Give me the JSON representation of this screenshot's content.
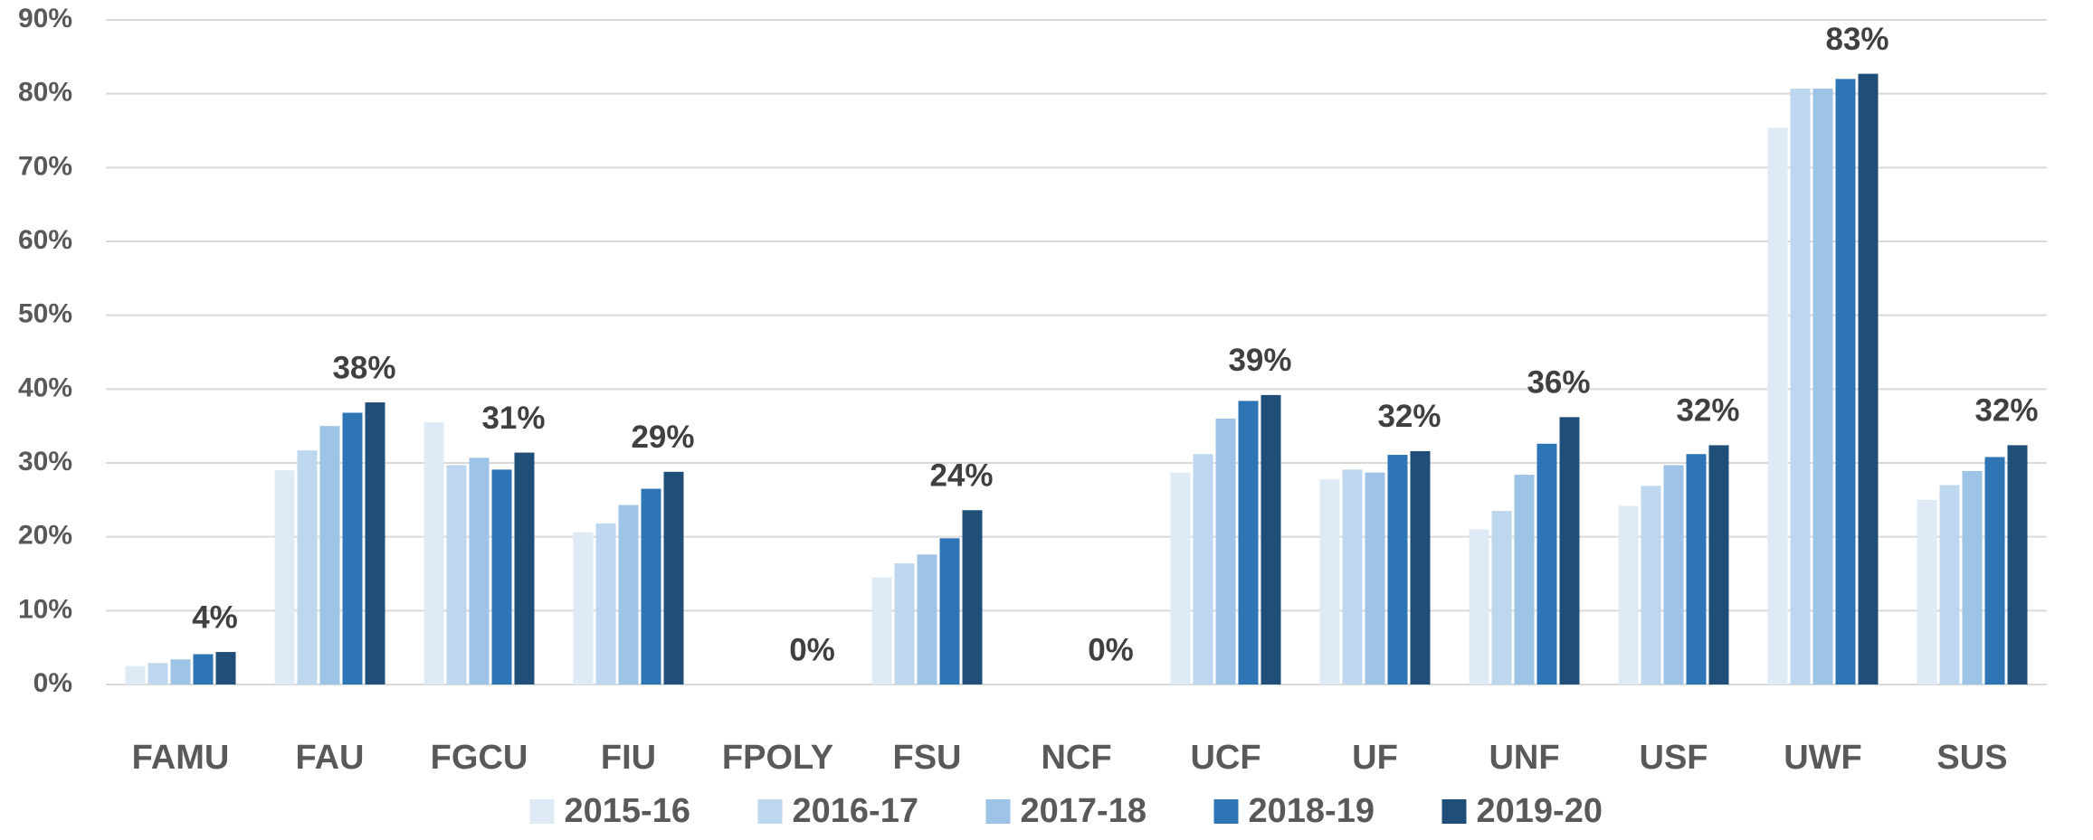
{
  "chart_data": {
    "type": "bar",
    "categories": [
      "FAMU",
      "FAU",
      "FGCU",
      "FIU",
      "FPOLY",
      "FSU",
      "NCF",
      "UCF",
      "UF",
      "UNF",
      "USF",
      "UWF",
      "SUS"
    ],
    "series": [
      {
        "name": "2015-16",
        "color": "#deebf7",
        "values": [
          2.5,
          29,
          35.5,
          20.6,
          0,
          14.5,
          0,
          28.7,
          27.8,
          21,
          24.2,
          75.4,
          25
        ]
      },
      {
        "name": "2016-17",
        "color": "#bdd7ee",
        "values": [
          2.9,
          31.7,
          29.7,
          21.8,
          0,
          16.4,
          0,
          31.2,
          29.1,
          23.5,
          26.9,
          80.7,
          27
        ]
      },
      {
        "name": "2017-18",
        "color": "#9dc3e6",
        "values": [
          3.4,
          35,
          30.7,
          24.3,
          0,
          17.6,
          0,
          36,
          28.7,
          28.4,
          29.7,
          80.7,
          28.9
        ]
      },
      {
        "name": "2018-19",
        "color": "#2e75b6",
        "values": [
          4.1,
          36.8,
          29.1,
          26.5,
          0,
          19.8,
          0,
          38.4,
          31.1,
          32.6,
          31.2,
          82,
          30.8
        ]
      },
      {
        "name": "2019-20",
        "color": "#1f4e79",
        "values": [
          4.4,
          38.2,
          31.4,
          28.8,
          0,
          23.6,
          0,
          39.2,
          31.6,
          36.2,
          32.4,
          82.7,
          32.4
        ],
        "value_labels": [
          "4%",
          "38%",
          "31%",
          "29%",
          "0%",
          "24%",
          "0%",
          "39%",
          "32%",
          "36%",
          "32%",
          "83%",
          "32%"
        ]
      }
    ],
    "ylim": [
      0,
      90
    ],
    "yticks": [
      {
        "value": 0,
        "label": "0%"
      },
      {
        "value": 10,
        "label": "10%"
      },
      {
        "value": 20,
        "label": "20%"
      },
      {
        "value": 30,
        "label": "30%"
      },
      {
        "value": 40,
        "label": "40%"
      },
      {
        "value": 50,
        "label": "50%"
      },
      {
        "value": 60,
        "label": "60%"
      },
      {
        "value": 70,
        "label": "70%"
      },
      {
        "value": 80,
        "label": "80%"
      },
      {
        "value": 90,
        "label": "90%"
      }
    ],
    "grid": true,
    "legend": "bottom"
  }
}
